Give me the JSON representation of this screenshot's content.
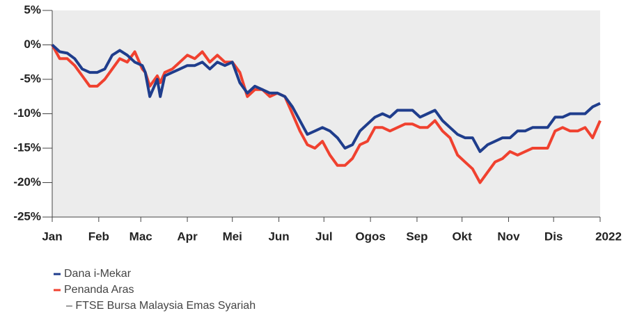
{
  "chart_data": {
    "type": "line",
    "x": [
      0,
      5,
      10,
      15,
      20,
      25,
      30,
      35,
      40,
      45,
      50,
      55,
      60,
      62,
      65,
      70,
      72,
      75,
      80,
      85,
      90,
      95,
      100,
      105,
      110,
      115,
      120,
      125,
      130,
      135,
      140,
      145,
      150,
      155,
      160,
      165,
      170,
      175,
      180,
      185,
      190,
      195,
      200,
      205,
      210,
      215,
      220,
      225,
      230,
      235,
      240,
      245,
      250,
      255,
      260,
      265,
      270,
      275,
      280,
      285,
      290,
      295,
      300,
      305,
      310,
      315,
      320,
      325,
      330,
      335,
      340,
      345,
      350,
      355,
      360,
      365
    ],
    "series": [
      {
        "name": "Dana i-Mekar",
        "color": "#1f3d8c",
        "values": [
          0,
          -1,
          -1.2,
          -2,
          -3.5,
          -4,
          -4,
          -3.5,
          -1.5,
          -0.8,
          -1.5,
          -2.5,
          -3,
          -4,
          -7.5,
          -5,
          -7.5,
          -4.5,
          -4,
          -3.5,
          -3,
          -3,
          -2.5,
          -3.5,
          -2.5,
          -3,
          -2.5,
          -5.5,
          -7,
          -6,
          -6.5,
          -7,
          -7,
          -7.5,
          -9,
          -11,
          -13,
          -12.5,
          -12,
          -12.5,
          -13.5,
          -15,
          -14.5,
          -12.5,
          -11.5,
          -10.5,
          -10,
          -10.5,
          -9.5,
          -9.5,
          -9.5,
          -10.5,
          -10,
          -9.5,
          -11,
          -12,
          -13,
          -13.5,
          -13.5,
          -15.5,
          -14.5,
          -14,
          -13.5,
          -13.5,
          -12.5,
          -12.5,
          -12,
          -12,
          -12,
          -10.5,
          -10.5,
          -10,
          -10,
          -10,
          -9,
          -8.5
        ]
      },
      {
        "name": "Penanda Aras",
        "color": "#f0412f",
        "values": [
          0,
          -2,
          -2,
          -3,
          -4.5,
          -6,
          -6,
          -5,
          -3.5,
          -2,
          -2.5,
          -1,
          -3.5,
          -4,
          -6,
          -4.5,
          -5.5,
          -4,
          -3.5,
          -2.5,
          -1.5,
          -2,
          -1,
          -2.5,
          -1.5,
          -2.5,
          -2.5,
          -4,
          -7.5,
          -6.5,
          -6.5,
          -7.5,
          -7,
          -7.5,
          -10,
          -12.5,
          -14.5,
          -15,
          -14,
          -16,
          -17.5,
          -17.5,
          -16.5,
          -14.5,
          -14,
          -12,
          -12,
          -12.5,
          -12,
          -11.5,
          -11.5,
          -12,
          -12,
          -11,
          -12.5,
          -13.5,
          -16,
          -17,
          -18,
          -20,
          -18.5,
          -17,
          -16.5,
          -15.5,
          -16,
          -15.5,
          -15,
          -15,
          -15,
          -12.5,
          -12,
          -12.5,
          -12.5,
          -12,
          -13.5,
          -11
        ]
      }
    ],
    "benchmark_note": "– FTSE Bursa Malaysia Emas Syariah",
    "xlim": [
      0,
      365
    ],
    "xticks": [
      {
        "value": 0,
        "label": "Jan"
      },
      {
        "value": 31,
        "label": "Feb"
      },
      {
        "value": 59,
        "label": "Mac"
      },
      {
        "value": 90,
        "label": "Apr"
      },
      {
        "value": 120,
        "label": "Mei"
      },
      {
        "value": 151,
        "label": "Jun"
      },
      {
        "value": 181,
        "label": "Jul"
      },
      {
        "value": 212,
        "label": "Ogos"
      },
      {
        "value": 243,
        "label": "Sep"
      },
      {
        "value": 273,
        "label": "Okt"
      },
      {
        "value": 304,
        "label": "Nov"
      },
      {
        "value": 334,
        "label": "Dis"
      },
      {
        "value": 365,
        "label": "2022"
      }
    ],
    "ylim": [
      -25,
      5
    ],
    "yticks": [
      {
        "value": 5,
        "label": "5%"
      },
      {
        "value": 0,
        "label": "0%"
      },
      {
        "value": -5,
        "label": "-5%"
      },
      {
        "value": -10,
        "label": "-10%"
      },
      {
        "value": -15,
        "label": "-15%"
      },
      {
        "value": -20,
        "label": "-20%"
      },
      {
        "value": -25,
        "label": "-25%"
      }
    ],
    "grid": false
  }
}
